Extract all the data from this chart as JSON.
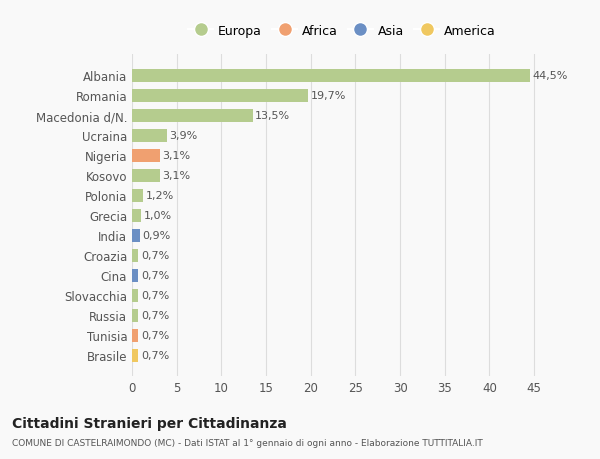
{
  "countries": [
    "Albania",
    "Romania",
    "Macedonia d/N.",
    "Ucraina",
    "Nigeria",
    "Kosovo",
    "Polonia",
    "Grecia",
    "India",
    "Croazia",
    "Cina",
    "Slovacchia",
    "Russia",
    "Tunisia",
    "Brasile"
  ],
  "values": [
    44.5,
    19.7,
    13.5,
    3.9,
    3.1,
    3.1,
    1.2,
    1.0,
    0.9,
    0.7,
    0.7,
    0.7,
    0.7,
    0.7,
    0.7
  ],
  "labels": [
    "44,5%",
    "19,7%",
    "13,5%",
    "3,9%",
    "3,1%",
    "3,1%",
    "1,2%",
    "1,0%",
    "0,9%",
    "0,7%",
    "0,7%",
    "0,7%",
    "0,7%",
    "0,7%",
    "0,7%"
  ],
  "continents": [
    "Europa",
    "Europa",
    "Europa",
    "Europa",
    "Africa",
    "Europa",
    "Europa",
    "Europa",
    "Asia",
    "Europa",
    "Asia",
    "Europa",
    "Europa",
    "Africa",
    "America"
  ],
  "continent_colors": {
    "Europa": "#b5cc8e",
    "Africa": "#f0a070",
    "Asia": "#6b8fc4",
    "America": "#f0c860"
  },
  "legend_order": [
    "Europa",
    "Africa",
    "Asia",
    "America"
  ],
  "title": "Cittadini Stranieri per Cittadinanza",
  "subtitle": "COMUNE DI CASTELRAIMONDO (MC) - Dati ISTAT al 1° gennaio di ogni anno - Elaborazione TUTTITALIA.IT",
  "xlim": [
    0,
    47
  ],
  "background_color": "#f9f9f9",
  "grid_color": "#dddddd",
  "bar_height": 0.65
}
